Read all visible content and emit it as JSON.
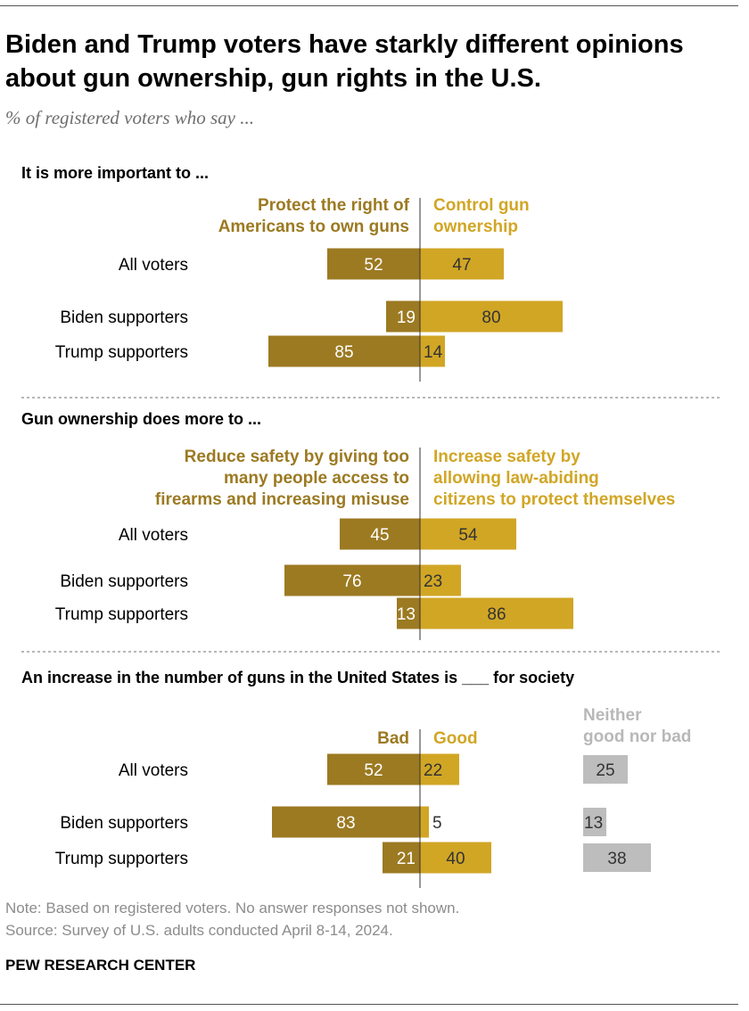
{
  "header": {
    "title": "Biden and Trump voters have starkly different opinions about gun ownership, gun rights in the U.S.",
    "subtitle": "% of registered voters who say ..."
  },
  "colors": {
    "dark_gold": "#9c7a22",
    "light_gold": "#d1a625",
    "gray": "#bdbdbd",
    "gray_label": "#b8b8b8",
    "axis": "#333333",
    "divider": "#8c8c8c"
  },
  "chart_data": [
    {
      "type": "bar",
      "title": "It is more important to ...",
      "categories": [
        "All voters",
        "Biden supporters",
        "Trump supporters"
      ],
      "series": [
        {
          "name": "Protect the right of Americans to own guns",
          "values": [
            52,
            19,
            85
          ]
        },
        {
          "name": "Control gun ownership",
          "values": [
            47,
            80,
            14
          ]
        }
      ]
    },
    {
      "type": "bar",
      "title": "Gun ownership does more to ...",
      "categories": [
        "All voters",
        "Biden supporters",
        "Trump supporters"
      ],
      "series": [
        {
          "name": "Reduce safety by giving too many people access to firearms and increasing misuse",
          "values": [
            45,
            76,
            13
          ]
        },
        {
          "name": "Increase safety by allowing law-abiding citizens to protect themselves",
          "values": [
            54,
            23,
            86
          ]
        }
      ]
    },
    {
      "type": "bar",
      "title": "An increase in the number of guns in the United States is ___ for society",
      "categories": [
        "All voters",
        "Biden supporters",
        "Trump supporters"
      ],
      "series": [
        {
          "name": "Bad",
          "values": [
            52,
            83,
            21
          ]
        },
        {
          "name": "Good",
          "values": [
            22,
            5,
            40
          ]
        },
        {
          "name": "Neither good nor bad",
          "values": [
            25,
            13,
            38
          ]
        }
      ]
    }
  ],
  "footer": {
    "note": "Note: Based on registered voters. No answer responses not shown.",
    "source": "Source: Survey of U.S. adults conducted April 8-14, 2024.",
    "brand": "PEW RESEARCH CENTER"
  }
}
